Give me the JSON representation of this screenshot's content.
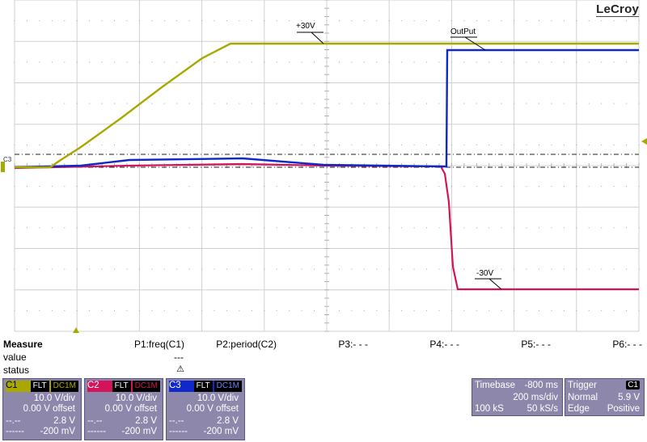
{
  "brand": "LeCroy",
  "annotations": {
    "plus30": "+30V",
    "output": "OutPut",
    "minus30": "-30V"
  },
  "colors": {
    "c1": "#a8a800",
    "c2": "#d4145a",
    "c3": "#1028c8",
    "panel": "#8d87ac"
  },
  "ground_marker": "C3",
  "measure": {
    "title": "Measure",
    "rows": [
      "value",
      "status"
    ],
    "params": [
      {
        "name": "P1:freq(C1)",
        "value": "",
        "status": ""
      },
      {
        "name": "P2:period(C2)",
        "value": "---",
        "status": "warning-icon"
      },
      {
        "name": "P3:- - -",
        "value": "",
        "status": ""
      },
      {
        "name": "P4:- - -",
        "value": "",
        "status": ""
      },
      {
        "name": "P5:- - -",
        "value": "",
        "status": ""
      },
      {
        "name": "P6:- - -",
        "value": "",
        "status": ""
      }
    ]
  },
  "channels": [
    {
      "name": "C1",
      "flt": "FLT",
      "coupling": "DC1M",
      "vdiv": "10.0 V/div",
      "offset": "0.00 V offset",
      "m1_label": "--.--",
      "m1": "2.8 V",
      "m2_label": "------",
      "m2": "-200 mV",
      "color": "#a8a800"
    },
    {
      "name": "C2",
      "flt": "FLT",
      "coupling": "DC1M",
      "vdiv": "10.0 V/div",
      "offset": "0.00 V offset",
      "m1_label": "--.--",
      "m1": "2.8 V",
      "m2_label": "------",
      "m2": "-200 mV",
      "color": "#d4145a"
    },
    {
      "name": "C3",
      "flt": "FLT",
      "coupling": "DC1M",
      "vdiv": "10.0 V/div",
      "offset": "0.00 V offset",
      "m1_label": "--.--",
      "m1": "2.8 V",
      "m2_label": "------",
      "m2": "-200 mV",
      "color": "#1028c8"
    }
  ],
  "timebase": {
    "label": "Timebase",
    "delay": "-800 ms",
    "tdiv": "200 ms/div",
    "samples": "100 kS",
    "rate": "50 kS/s"
  },
  "trigger": {
    "label": "Trigger",
    "source": "C1",
    "mode": "Normal",
    "level": "5.9 V",
    "type": "Edge",
    "slope": "Positive"
  }
}
